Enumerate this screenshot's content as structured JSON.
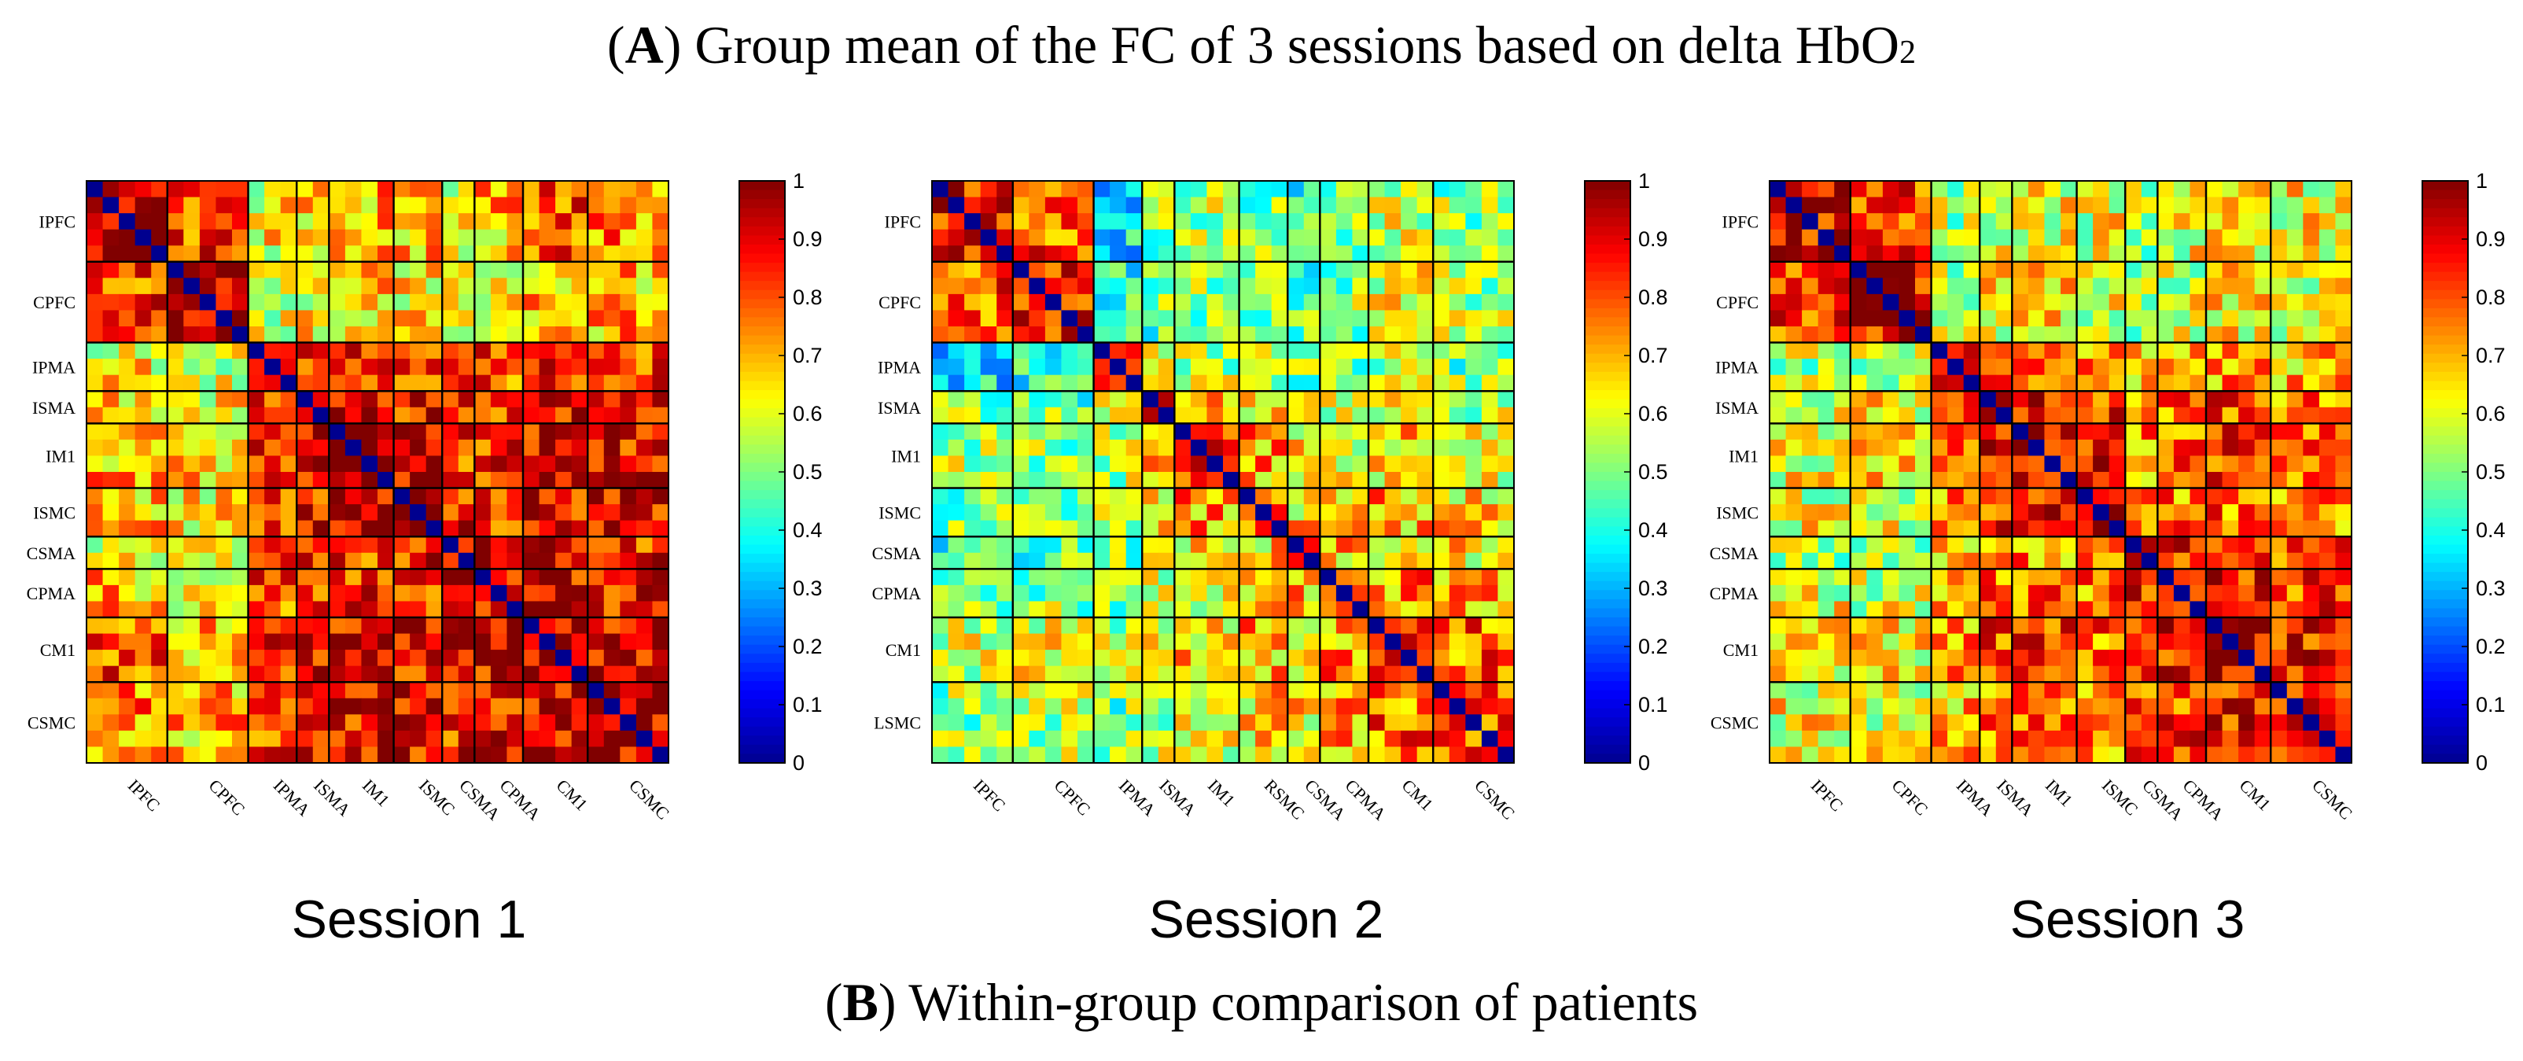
{
  "figure": {
    "title_a_prefix": "(",
    "title_a_letter": "A",
    "title_a_text": ") Group mean of the FC of 3 sessions based on delta HbO",
    "title_a_sub": "2",
    "title_b_prefix": "(",
    "title_b_letter": "B",
    "title_b_text": ") Within-group comparison of patients"
  },
  "colors": {
    "colormap": [
      "#00008f",
      "#0000ff",
      "#0080ff",
      "#00ffff",
      "#80ff80",
      "#ffff00",
      "#ff8000",
      "#ff0000",
      "#800000"
    ],
    "grid_line": "#000000",
    "diagonal": "#00008f"
  },
  "chart_data": [
    {
      "type": "heatmap",
      "title": "Session 1",
      "matrix_size": 36,
      "region_sizes": [
        5,
        5,
        3,
        2,
        4,
        3,
        2,
        3,
        4,
        5
      ],
      "y_tick_labels": [
        "IPFC",
        "CPFC",
        "IPMA",
        "ISMA",
        "IM1",
        "ISMC",
        "CSMA",
        "CPMA",
        "CM1",
        "CSMC"
      ],
      "x_tick_labels": [
        "IPFC",
        "CPFC",
        "IPMA",
        "ISMA",
        "IM1",
        "ISMC",
        "CSMA",
        "CPMA",
        "CM1",
        "CSMC"
      ],
      "colorbar_ticks": [
        "0",
        "0.1",
        "0.2",
        "0.3",
        "0.4",
        "0.5",
        "0.6",
        "0.7",
        "0.8",
        "0.9",
        "1"
      ],
      "clim": [
        0,
        1
      ],
      "block_means": [
        [
          0.9,
          0.82,
          0.62,
          0.66,
          0.7,
          0.68,
          0.62,
          0.7,
          0.8,
          0.74
        ],
        [
          0.82,
          0.9,
          0.58,
          0.62,
          0.66,
          0.64,
          0.55,
          0.64,
          0.7,
          0.7
        ],
        [
          0.62,
          0.58,
          0.9,
          0.86,
          0.86,
          0.82,
          0.76,
          0.8,
          0.82,
          0.82
        ],
        [
          0.66,
          0.62,
          0.86,
          0.92,
          0.9,
          0.88,
          0.82,
          0.84,
          0.86,
          0.86
        ],
        [
          0.7,
          0.66,
          0.86,
          0.9,
          0.94,
          0.92,
          0.84,
          0.86,
          0.9,
          0.88
        ],
        [
          0.68,
          0.64,
          0.82,
          0.88,
          0.92,
          0.94,
          0.86,
          0.86,
          0.88,
          0.9
        ],
        [
          0.62,
          0.55,
          0.76,
          0.82,
          0.84,
          0.86,
          0.92,
          0.88,
          0.86,
          0.86
        ],
        [
          0.7,
          0.64,
          0.8,
          0.84,
          0.86,
          0.86,
          0.88,
          0.92,
          0.9,
          0.88
        ],
        [
          0.8,
          0.7,
          0.82,
          0.86,
          0.9,
          0.88,
          0.86,
          0.9,
          0.94,
          0.92
        ],
        [
          0.74,
          0.7,
          0.82,
          0.86,
          0.88,
          0.9,
          0.86,
          0.88,
          0.92,
          0.94
        ]
      ]
    },
    {
      "type": "heatmap",
      "title": "Session 2",
      "matrix_size": 36,
      "region_sizes": [
        5,
        5,
        3,
        2,
        4,
        3,
        2,
        3,
        4,
        5
      ],
      "y_tick_labels": [
        "IPFC",
        "CPFC",
        "IPMA",
        "ISMA",
        "IM1",
        "ISMC",
        "CSMA",
        "CPMA",
        "CM1",
        "LSMC"
      ],
      "x_tick_labels": [
        "IPFC",
        "CPFC",
        "IPMA",
        "ISMA",
        "IM1",
        "RSMC",
        "CSMA",
        "CPMA",
        "CM1",
        "CSMC"
      ],
      "colorbar_ticks": [
        "0",
        "0.1",
        "0.2",
        "0.3",
        "0.4",
        "0.5",
        "0.6",
        "0.7",
        "0.8",
        "0.9",
        "1"
      ],
      "clim": [
        0,
        1
      ],
      "block_means": [
        [
          0.86,
          0.8,
          0.38,
          0.5,
          0.55,
          0.5,
          0.45,
          0.5,
          0.58,
          0.52
        ],
        [
          0.8,
          0.86,
          0.42,
          0.48,
          0.52,
          0.5,
          0.46,
          0.52,
          0.6,
          0.55
        ],
        [
          0.38,
          0.42,
          0.75,
          0.65,
          0.55,
          0.52,
          0.5,
          0.52,
          0.55,
          0.5
        ],
        [
          0.5,
          0.48,
          0.65,
          0.8,
          0.68,
          0.62,
          0.55,
          0.58,
          0.6,
          0.55
        ],
        [
          0.55,
          0.52,
          0.55,
          0.68,
          0.8,
          0.72,
          0.62,
          0.62,
          0.66,
          0.62
        ],
        [
          0.5,
          0.5,
          0.52,
          0.62,
          0.72,
          0.8,
          0.66,
          0.68,
          0.7,
          0.66
        ],
        [
          0.45,
          0.46,
          0.5,
          0.55,
          0.62,
          0.66,
          0.78,
          0.7,
          0.68,
          0.64
        ],
        [
          0.5,
          0.52,
          0.52,
          0.58,
          0.62,
          0.68,
          0.7,
          0.8,
          0.74,
          0.7
        ],
        [
          0.58,
          0.6,
          0.55,
          0.6,
          0.66,
          0.7,
          0.68,
          0.74,
          0.84,
          0.78
        ],
        [
          0.52,
          0.55,
          0.5,
          0.55,
          0.62,
          0.66,
          0.64,
          0.7,
          0.78,
          0.82
        ]
      ]
    },
    {
      "type": "heatmap",
      "title": "Session 3",
      "matrix_size": 36,
      "region_sizes": [
        5,
        5,
        3,
        2,
        4,
        3,
        2,
        3,
        4,
        5
      ],
      "y_tick_labels": [
        "IPFC",
        "CPFC",
        "IPMA",
        "ISMA",
        "IM1",
        "ISMC",
        "CSMA",
        "CPMA",
        "CM1",
        "CSMC"
      ],
      "x_tick_labels": [
        "IPFC",
        "CPFC",
        "IPMA",
        "ISMA",
        "IM1",
        "ISMC",
        "CSMA",
        "CPMA",
        "CM1",
        "CSMC"
      ],
      "colorbar_ticks": [
        "0",
        "0.1",
        "0.2",
        "0.3",
        "0.4",
        "0.5",
        "0.6",
        "0.7",
        "0.8",
        "0.9",
        "1"
      ],
      "clim": [
        0,
        1
      ],
      "block_means": [
        [
          0.9,
          0.82,
          0.55,
          0.6,
          0.62,
          0.6,
          0.55,
          0.6,
          0.64,
          0.62
        ],
        [
          0.82,
          0.9,
          0.58,
          0.62,
          0.64,
          0.6,
          0.55,
          0.58,
          0.62,
          0.6
        ],
        [
          0.55,
          0.58,
          0.86,
          0.8,
          0.76,
          0.72,
          0.66,
          0.68,
          0.72,
          0.68
        ],
        [
          0.6,
          0.62,
          0.8,
          0.9,
          0.86,
          0.82,
          0.72,
          0.76,
          0.8,
          0.76
        ],
        [
          0.62,
          0.64,
          0.76,
          0.86,
          0.92,
          0.86,
          0.74,
          0.76,
          0.82,
          0.78
        ],
        [
          0.6,
          0.6,
          0.72,
          0.82,
          0.86,
          0.9,
          0.74,
          0.74,
          0.78,
          0.76
        ],
        [
          0.55,
          0.55,
          0.66,
          0.72,
          0.74,
          0.74,
          0.9,
          0.84,
          0.8,
          0.78
        ],
        [
          0.6,
          0.58,
          0.68,
          0.76,
          0.76,
          0.74,
          0.84,
          0.92,
          0.86,
          0.82
        ],
        [
          0.64,
          0.62,
          0.72,
          0.8,
          0.82,
          0.78,
          0.8,
          0.86,
          0.92,
          0.86
        ],
        [
          0.62,
          0.6,
          0.68,
          0.76,
          0.78,
          0.76,
          0.78,
          0.82,
          0.86,
          0.9
        ]
      ]
    }
  ]
}
